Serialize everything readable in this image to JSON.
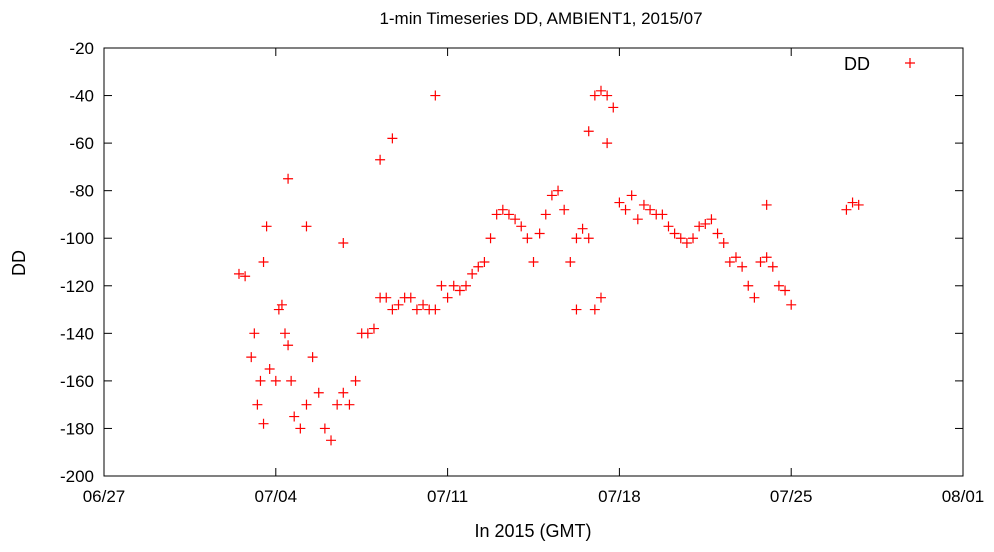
{
  "chart_data": {
    "type": "scatter",
    "title": "1-min Timeseries DD, AMBIENT1, 2015/07",
    "xlabel": "In 2015 (GMT)",
    "ylabel": "DD",
    "ylim": [
      -200,
      -20
    ],
    "yticks": [
      -200,
      -180,
      -160,
      -140,
      -120,
      -100,
      -80,
      -60,
      -40,
      -20
    ],
    "xlim": [
      "2015-06-27",
      "2015-08-01"
    ],
    "xticks": [
      "06/27",
      "07/04",
      "07/11",
      "07/18",
      "07/25",
      "08/01"
    ],
    "marker": "plus",
    "legend_position": "top-right",
    "color": "#ff0000",
    "series": [
      {
        "name": "DD",
        "x": [
          "2015-07-02 12:00",
          "2015-07-02 18:00",
          "2015-07-03 00:00",
          "2015-07-03 03:00",
          "2015-07-03 06:00",
          "2015-07-03 09:00",
          "2015-07-03 12:00",
          "2015-07-03 15:00",
          "2015-07-03 18:00",
          "2015-07-04 00:00",
          "2015-07-04 03:00",
          "2015-07-04 06:00",
          "2015-07-04 09:00",
          "2015-07-04 12:00",
          "2015-07-04 15:00",
          "2015-07-04 18:00",
          "2015-07-05 00:00",
          "2015-07-05 06:00",
          "2015-07-05 12:00",
          "2015-07-05 18:00",
          "2015-07-06 00:00",
          "2015-07-06 06:00",
          "2015-07-06 12:00",
          "2015-07-06 18:00",
          "2015-07-07 00:00",
          "2015-07-07 06:00",
          "2015-07-07 12:00",
          "2015-07-07 18:00",
          "2015-07-08 00:00",
          "2015-07-08 06:00",
          "2015-07-08 12:00",
          "2015-07-08 18:00",
          "2015-07-09 00:00",
          "2015-07-09 06:00",
          "2015-07-09 12:00",
          "2015-07-09 18:00",
          "2015-07-10 00:00",
          "2015-07-10 06:00",
          "2015-07-10 12:00",
          "2015-07-10 18:00",
          "2015-07-11 00:00",
          "2015-07-11 06:00",
          "2015-07-11 12:00",
          "2015-07-11 18:00",
          "2015-07-12 00:00",
          "2015-07-12 06:00",
          "2015-07-12 12:00",
          "2015-07-12 18:00",
          "2015-07-13 00:00",
          "2015-07-13 06:00",
          "2015-07-13 12:00",
          "2015-07-13 18:00",
          "2015-07-14 00:00",
          "2015-07-14 06:00",
          "2015-07-14 12:00",
          "2015-07-14 18:00",
          "2015-07-15 00:00",
          "2015-07-15 06:00",
          "2015-07-15 12:00",
          "2015-07-15 18:00",
          "2015-07-16 00:00",
          "2015-07-16 06:00",
          "2015-07-16 12:00",
          "2015-07-16 18:00",
          "2015-07-17 00:00",
          "2015-07-17 06:00",
          "2015-07-17 12:00",
          "2015-07-17 18:00",
          "2015-07-18 00:00",
          "2015-07-18 06:00",
          "2015-07-18 12:00",
          "2015-07-18 18:00",
          "2015-07-19 00:00",
          "2015-07-19 06:00",
          "2015-07-19 12:00",
          "2015-07-19 18:00",
          "2015-07-20 00:00",
          "2015-07-20 06:00",
          "2015-07-20 12:00",
          "2015-07-20 18:00",
          "2015-07-21 00:00",
          "2015-07-21 06:00",
          "2015-07-21 12:00",
          "2015-07-21 18:00",
          "2015-07-22 00:00",
          "2015-07-22 06:00",
          "2015-07-22 12:00",
          "2015-07-22 18:00",
          "2015-07-23 00:00",
          "2015-07-23 06:00",
          "2015-07-23 12:00",
          "2015-07-23 18:00",
          "2015-07-24 00:00",
          "2015-07-24 06:00",
          "2015-07-24 12:00",
          "2015-07-24 18:00",
          "2015-07-25 00:00",
          "2015-07-27 06:00",
          "2015-07-27 12:00",
          "2015-07-27 18:00",
          "2015-07-03 12:00",
          "2015-07-04 12:00",
          "2015-07-05 06:00",
          "2015-07-06 18:00",
          "2015-07-08 06:00",
          "2015-07-08 18:00",
          "2015-07-10 12:00",
          "2015-07-16 06:00",
          "2015-07-16 18:00",
          "2015-07-17 00:00",
          "2015-07-17 06:00",
          "2015-07-17 12:00",
          "2015-07-24 00:00"
        ],
        "y": [
          -115,
          -116,
          -150,
          -140,
          -170,
          -160,
          -110,
          -95,
          -155,
          -160,
          -130,
          -128,
          -140,
          -145,
          -160,
          -175,
          -180,
          -170,
          -150,
          -165,
          -180,
          -185,
          -170,
          -165,
          -170,
          -160,
          -140,
          -140,
          -138,
          -125,
          -125,
          -130,
          -128,
          -125,
          -125,
          -130,
          -128,
          -130,
          -130,
          -120,
          -125,
          -120,
          -122,
          -120,
          -115,
          -112,
          -110,
          -100,
          -90,
          -88,
          -90,
          -92,
          -95,
          -100,
          -110,
          -98,
          -90,
          -82,
          -80,
          -88,
          -110,
          -100,
          -96,
          -100,
          -130,
          -125,
          -60,
          -45,
          -85,
          -88,
          -82,
          -92,
          -86,
          -88,
          -90,
          -90,
          -95,
          -98,
          -100,
          -102,
          -100,
          -95,
          -94,
          -92,
          -98,
          -102,
          -110,
          -108,
          -112,
          -120,
          -125,
          -110,
          -108,
          -112,
          -120,
          -122,
          -128,
          -88,
          -85,
          -86,
          -178,
          -75,
          -95,
          -102,
          -67,
          -58,
          -40,
          -130,
          -55,
          -40,
          -38,
          -40,
          -86
        ]
      }
    ]
  }
}
